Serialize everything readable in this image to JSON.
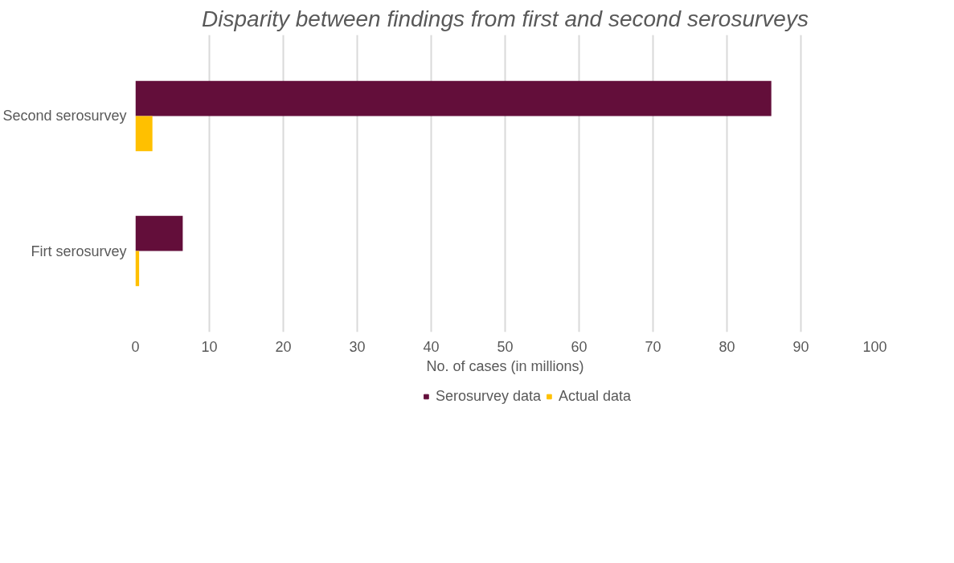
{
  "chart_data": {
    "type": "bar",
    "orientation": "horizontal",
    "title": "Disparity between findings from first and second serosurveys",
    "xlabel": "No. of cases (in millions)",
    "categories": [
      "Second serosurvey",
      "Firt serosurvey"
    ],
    "series": [
      {
        "name": "Serosurvey data",
        "color": "#630e3a",
        "values": [
          86,
          6.4
        ]
      },
      {
        "name": "Actual data",
        "color": "#ffc000",
        "values": [
          2.3,
          0.5
        ]
      }
    ],
    "xlim": [
      0,
      100
    ],
    "xticks": [
      0,
      10,
      20,
      30,
      40,
      50,
      60,
      70,
      80,
      90,
      100
    ],
    "grid": "x",
    "legend": "bottom"
  }
}
